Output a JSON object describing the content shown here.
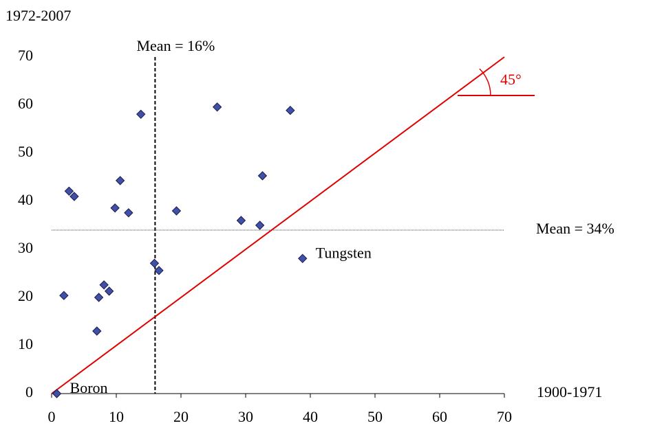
{
  "chart_data": {
    "type": "scatter",
    "y_axis_label": "1972-2007",
    "x_axis_label": "1900-1971",
    "x": [
      0.8,
      1.9,
      2.7,
      3.5,
      7.0,
      7.3,
      8.1,
      8.9,
      9.8,
      10.6,
      11.9,
      13.8,
      15.9,
      16.6,
      19.3,
      25.6,
      29.3,
      32.2,
      32.6,
      36.9,
      38.8
    ],
    "values": [
      0,
      20.4,
      42.1,
      41,
      13,
      20,
      22.6,
      21.3,
      38.6,
      44.3,
      37.6,
      58.1,
      27.1,
      25.6,
      38,
      59.6,
      36,
      35,
      45.3,
      58.9,
      28.1
    ],
    "point_labels": [
      "Boron",
      null,
      null,
      null,
      null,
      null,
      null,
      null,
      null,
      null,
      null,
      null,
      null,
      null,
      null,
      null,
      null,
      null,
      null,
      null,
      "Tungsten"
    ],
    "color": "#4050a4",
    "xlim": [
      0,
      70
    ],
    "ylim": [
      0,
      70
    ],
    "xticks": [
      0,
      10,
      20,
      30,
      40,
      50,
      60,
      70
    ],
    "yticks": [
      0,
      10,
      20,
      30,
      40,
      50,
      60,
      70
    ],
    "mean_x": 16,
    "mean_x_label": "Mean = 16%",
    "mean_y": 34,
    "mean_y_label": "Mean = 34%",
    "diagonal_label": "45°",
    "diagonal_color": "#e00000"
  }
}
